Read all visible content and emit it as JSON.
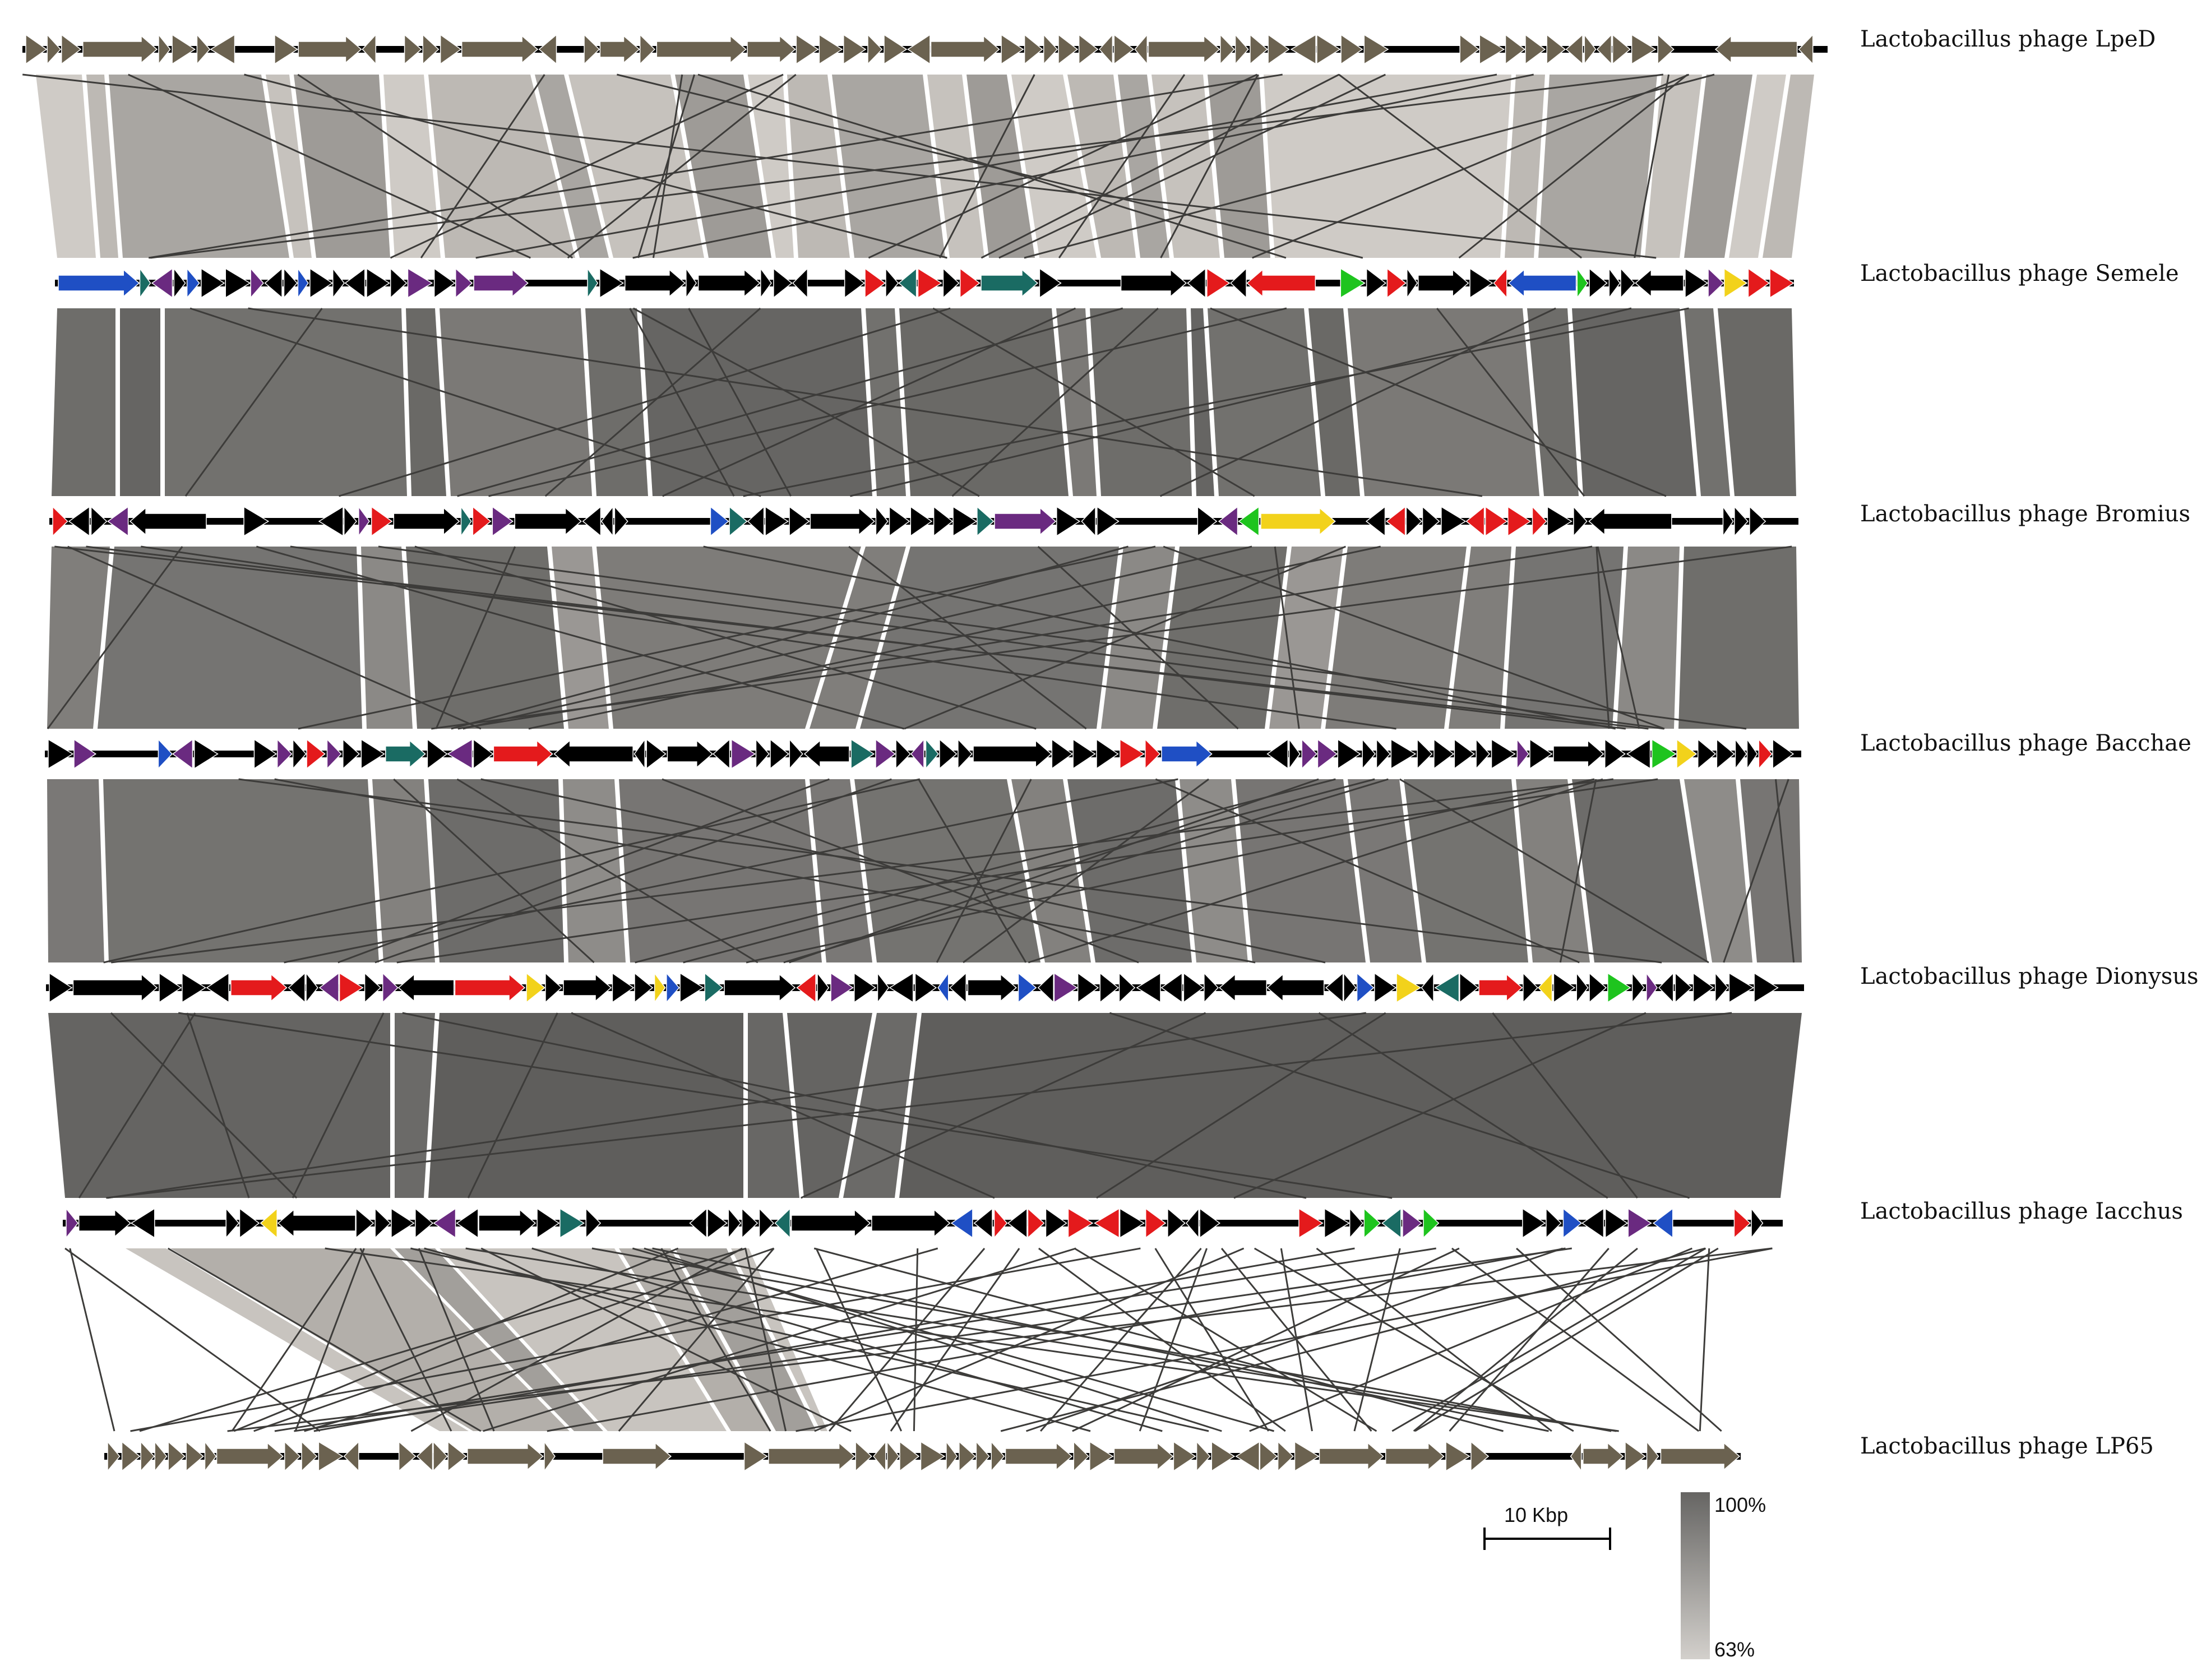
{
  "genomes": [
    {
      "label": "Lactobacillus phage LpeD"
    },
    {
      "label": "Lactobacillus phage Semele"
    },
    {
      "label": "Lactobacillus phage Bromius"
    },
    {
      "label": "Lactobacillus phage Bacchae"
    },
    {
      "label": "Lactobacillus phage Dionysus"
    },
    {
      "label": "Lactobacillus phage Iacchus"
    },
    {
      "label": "Lactobacillus phage LP65"
    }
  ],
  "scale_bar": {
    "label": "10 Kbp"
  },
  "identity_legend": {
    "max": "100%",
    "min": "63%"
  },
  "colors": {
    "olive": "#6b6250",
    "black": "#000000",
    "red": "#e41a1c",
    "teal": "#1a6b63",
    "purple": "#6a2a80",
    "yellow": "#f2d21b",
    "green": "#1ec41e",
    "blue": "#1f4fc4",
    "high_identity": "#666563",
    "low_identity": "#d3d0cc"
  }
}
